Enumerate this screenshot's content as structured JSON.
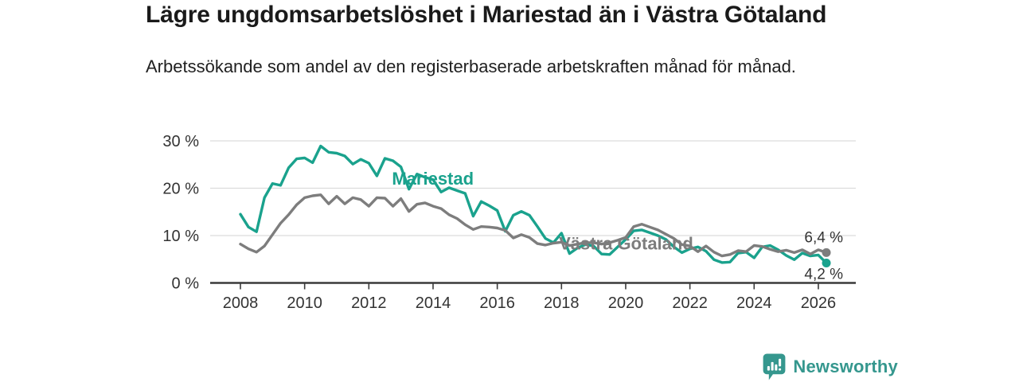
{
  "header": {
    "title": "Lägre ungdomsarbetslöshet i Mariestad än i Västra Götaland",
    "subtitle": "Arbetssökande som andel av den registerbaserade arbetskraften månad för månad."
  },
  "footer": {
    "brand": "Newsworthy",
    "logo_icon": "newsworthy-speech-bubble-bar-chart",
    "brand_color": "#35978e"
  },
  "chart_data": {
    "type": "line",
    "title": "Lägre ungdomsarbetslöshet i Mariestad än i Västra Götaland",
    "subtitle": "Arbetssökande som andel av den registerbaserade arbetskraften månad för månad.",
    "unit": "%",
    "grid": "horizontal",
    "legend": "inline-labels",
    "x_axis": {
      "ticks": [
        2008,
        2010,
        2012,
        2014,
        2016,
        2018,
        2020,
        2022,
        2024,
        2026
      ],
      "range": [
        2006.9,
        2027.9
      ]
    },
    "y_axis": {
      "ticks": [
        {
          "value": 0,
          "label": "0 %"
        },
        {
          "value": 10,
          "label": "10 %"
        },
        {
          "value": 20,
          "label": "20 %"
        },
        {
          "value": 30,
          "label": "30 %"
        }
      ],
      "range": [
        0,
        32
      ]
    },
    "colors": {
      "mariestad": "#1aa28d",
      "vastra_gotaland": "#7d7d7d",
      "axis_text": "#333333",
      "grid_line": "#dcdcdc",
      "axis_line": "#3a3a3a",
      "value_label": "#333333"
    },
    "series": [
      {
        "name": "Mariestad",
        "color": "#1aa28d",
        "x_start": 2008,
        "x_step": 0.25,
        "last_value_label": "4,2 %",
        "label_position": "below-end",
        "values": [
          14.5,
          11.8,
          10.8,
          18.0,
          21.0,
          20.6,
          24.3,
          26.2,
          26.4,
          25.4,
          28.9,
          27.6,
          27.4,
          26.8,
          25.1,
          26.1,
          25.3,
          22.6,
          26.3,
          25.8,
          24.5,
          19.8,
          23.0,
          22.3,
          21.8,
          19.2,
          20.1,
          19.5,
          18.9,
          14.1,
          17.2,
          16.3,
          15.3,
          10.9,
          14.3,
          15.1,
          14.3,
          11.9,
          9.4,
          8.5,
          10.5,
          6.2,
          7.4,
          8.1,
          7.8,
          6.1,
          6.0,
          7.6,
          9.2,
          11.0,
          11.2,
          10.6,
          10.0,
          9.2,
          7.6,
          6.4,
          7.2,
          7.6,
          6.7,
          4.9,
          4.3,
          4.4,
          6.3,
          6.5,
          5.3,
          7.6,
          7.9,
          7.0,
          5.8,
          4.9,
          6.3,
          5.7,
          5.9,
          4.2
        ]
      },
      {
        "name": "Västra Götaland",
        "color": "#7d7d7d",
        "x_start": 2008,
        "x_step": 0.25,
        "last_value_label": "6,4 %",
        "label_position": "above-end",
        "values": [
          8.2,
          7.2,
          6.5,
          7.8,
          10.2,
          12.6,
          14.4,
          16.5,
          18.0,
          18.4,
          18.6,
          16.7,
          18.3,
          16.7,
          18.0,
          17.6,
          16.2,
          18.0,
          17.9,
          16.2,
          17.8,
          15.1,
          16.6,
          16.9,
          16.2,
          15.7,
          14.4,
          13.6,
          12.3,
          11.3,
          11.9,
          11.8,
          11.6,
          11.1,
          9.5,
          10.2,
          9.6,
          8.3,
          8.0,
          8.4,
          8.6,
          7.9,
          8.2,
          8.5,
          8.5,
          8.2,
          8.5,
          9.0,
          9.6,
          11.9,
          12.4,
          11.8,
          11.2,
          10.3,
          9.4,
          8.1,
          7.8,
          6.6,
          7.8,
          6.5,
          5.7,
          6.0,
          6.8,
          6.6,
          7.9,
          7.7,
          7.1,
          6.6,
          6.9,
          6.4,
          7.0,
          6.1,
          7.0,
          6.4
        ]
      }
    ],
    "annotations": [
      {
        "text": "Mariestad",
        "x": 2012.72,
        "y": 21.9,
        "color": "#1aa28d",
        "bold": true,
        "anchor": "start"
      },
      {
        "text": "Västra Götaland",
        "x": 2017.92,
        "y": 8.2,
        "color": "#7d7d7d",
        "bold": true,
        "anchor": "start"
      }
    ]
  }
}
